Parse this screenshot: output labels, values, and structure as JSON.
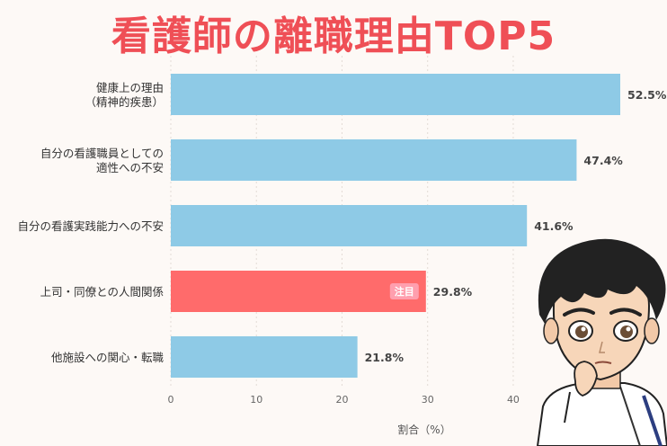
{
  "chart_data": {
    "type": "bar",
    "orientation": "horizontal",
    "title": "看護師の離職理由TOP5",
    "xlabel": "割合（%）",
    "categories": [
      [
        "健康上の理由",
        "（精神的疾患）"
      ],
      [
        "自分の看護職員としての",
        "適性への不安"
      ],
      [
        "自分の看護実践能力への不安"
      ],
      [
        "上司・同僚との人間関係"
      ],
      [
        "他施設への関心・転職"
      ]
    ],
    "values": [
      52.5,
      47.4,
      41.6,
      29.8,
      21.8
    ],
    "value_labels": [
      "52.5%",
      "47.4%",
      "41.6%",
      "29.8%",
      "21.8%"
    ],
    "xlim": [
      0,
      52.5
    ],
    "xticks": [
      0,
      10,
      20,
      30,
      40
    ],
    "grid": true,
    "highlight_index": 3,
    "highlight_badge": "注目",
    "colors": {
      "bar": "#8ecae6",
      "highlight": "#ff6b6b",
      "badge": "#ff9fae",
      "title": "#ef4f56"
    }
  }
}
